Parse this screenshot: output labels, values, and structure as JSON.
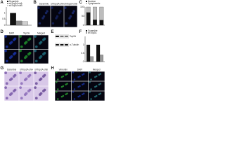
{
  "panels": {
    "A": {
      "letter": "A",
      "chart": {
        "type": "bar",
        "ylim": [
          0,
          1.5
        ],
        "yticks": [
          0,
          0.5,
          1
        ],
        "series": [
          {
            "name": "Scramble",
            "color": "#111111",
            "values": [
              1
            ]
          },
          {
            "name": "shTop2A shA",
            "color": "#8a8a8a",
            "values": [
              0.35
            ]
          },
          {
            "name": "shTop2A shB",
            "color": "#cfcfcf",
            "values": [
              0.3
            ]
          }
        ]
      }
    },
    "B": {
      "letter": "B",
      "labels": [
        "Scramble",
        "shTop2A shA",
        "shTop2A shB"
      ]
    },
    "C": {
      "letter": "C",
      "chart": {
        "type": "stacked",
        "ylim": [
          0,
          100
        ],
        "yticks": [
          0,
          50,
          100
        ],
        "series": [
          {
            "name": "Nuclear",
            "color": "#111111",
            "values": [
              70,
              30,
              28
            ]
          },
          {
            "name": "Cytoplasmic",
            "color": "#bdbdbd",
            "values": [
              30,
              70,
              72
            ]
          }
        ]
      }
    },
    "D": {
      "letter": "D",
      "labels": [
        "DAPI",
        "Top2A",
        "Merged"
      ]
    },
    "E": {
      "letter": "E",
      "labels": [
        "Top2A",
        "α-Tubulin"
      ]
    },
    "F": {
      "letter": "F",
      "chart": {
        "type": "bar",
        "ylim": [
          0,
          1.5
        ],
        "yticks": [
          0,
          0.5,
          1
        ],
        "series": [
          {
            "name": "Scramble",
            "color": "#111111",
            "values": [
              1,
              1
            ]
          },
          {
            "name": "shTop2A",
            "color": "#9a9a9a",
            "values": [
              0.3,
              0.4
            ]
          }
        ]
      }
    },
    "G": {
      "letter": "G",
      "labels": [
        "Scramble",
        "shTop2A shA",
        "shTop2A shB"
      ]
    },
    "H": {
      "letter": "H",
      "labels": [
        "Vimentin",
        "DAPI",
        "Merged"
      ]
    }
  }
}
